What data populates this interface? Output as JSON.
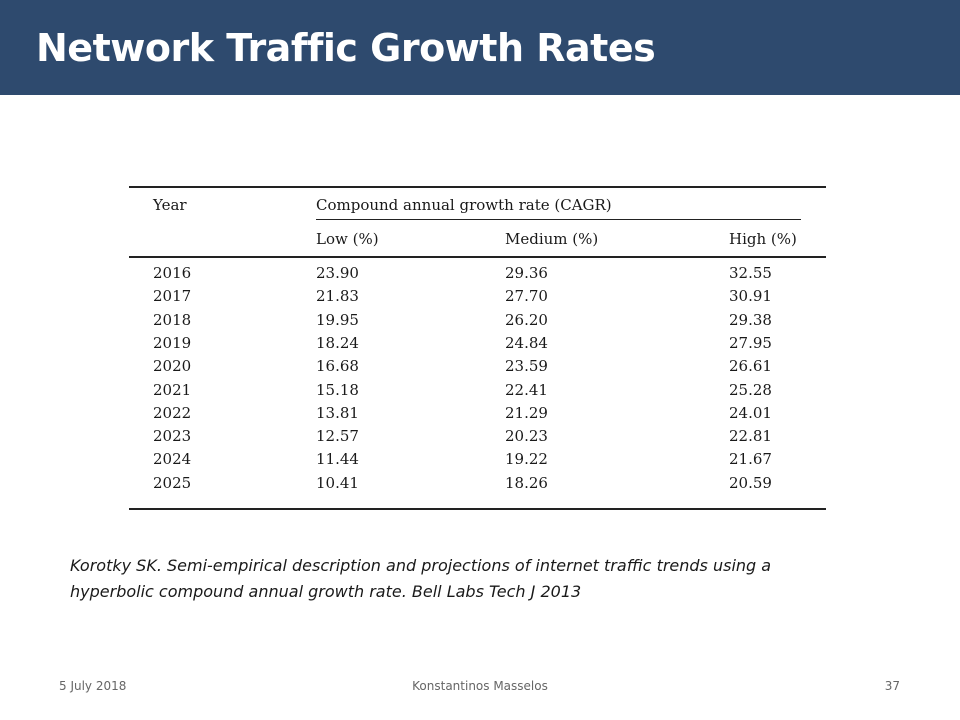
{
  "slide": {
    "title": "Network Traffic Growth Rates",
    "citation": "Korotky SK. Semi-empirical description and projections of internet traffic trends using a hyperbolic compound annual growth rate. Bell Labs Tech J 2013"
  },
  "table": {
    "header_year": "Year",
    "group_header": "Compound annual growth rate (CAGR)",
    "columns": [
      "Low (%)",
      "Medium (%)",
      "High (%)"
    ],
    "rows": [
      {
        "year": "2016",
        "low": "23.90",
        "medium": "29.36",
        "high": "32.55"
      },
      {
        "year": "2017",
        "low": "21.83",
        "medium": "27.70",
        "high": "30.91"
      },
      {
        "year": "2018",
        "low": "19.95",
        "medium": "26.20",
        "high": "29.38"
      },
      {
        "year": "2019",
        "low": "18.24",
        "medium": "24.84",
        "high": "27.95"
      },
      {
        "year": "2020",
        "low": "16.68",
        "medium": "23.59",
        "high": "26.61"
      },
      {
        "year": "2021",
        "low": "15.18",
        "medium": "22.41",
        "high": "25.28"
      },
      {
        "year": "2022",
        "low": "13.81",
        "medium": "21.29",
        "high": "24.01"
      },
      {
        "year": "2023",
        "low": "12.57",
        "medium": "20.23",
        "high": "22.81"
      },
      {
        "year": "2024",
        "low": "11.44",
        "medium": "19.22",
        "high": "21.67"
      },
      {
        "year": "2025",
        "low": "10.41",
        "medium": "18.26",
        "high": "20.59"
      }
    ]
  },
  "footer": {
    "date": "5 July 2018",
    "author": "Konstantinos Masselos",
    "page": "37"
  },
  "colors": {
    "title_bar": "#2e4a6e",
    "title_text": "#ffffff"
  }
}
